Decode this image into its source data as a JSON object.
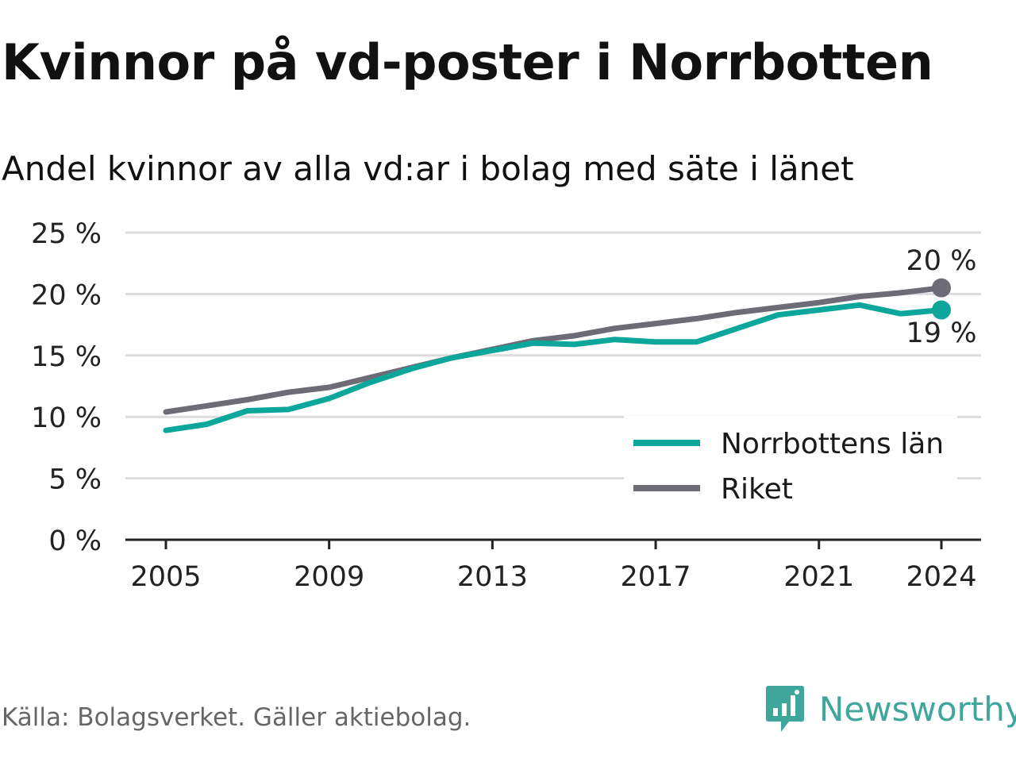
{
  "title": "Kvinnor på vd-poster i Norrbotten",
  "subtitle": "Andel kvinnor av alla vd:ar i bolag med säte i länet",
  "source": "Källa: Bolagsverket. Gäller aktiebolag.",
  "brand": {
    "name": "Newsworthy",
    "icon": "newsworthy-logo-icon",
    "color": "#3ea69a"
  },
  "chart_data": {
    "type": "line",
    "title": "Kvinnor på vd-poster i Norrbotten",
    "subtitle": "Andel kvinnor av alla vd:ar i bolag med säte i länet",
    "x": [
      2005,
      2006,
      2007,
      2008,
      2009,
      2010,
      2011,
      2012,
      2013,
      2014,
      2015,
      2016,
      2017,
      2018,
      2019,
      2020,
      2021,
      2022,
      2023,
      2024
    ],
    "x_ticks": [
      "2005",
      "2009",
      "2013",
      "2017",
      "2021",
      "2024"
    ],
    "y_ticks": [
      "0 %",
      "5 %",
      "10 %",
      "15 %",
      "20 %",
      "25 %"
    ],
    "ylim": [
      0,
      25
    ],
    "grid": "horizontal",
    "legend_position": "right",
    "series": [
      {
        "name": "Norrbottens län",
        "color": "#0da69a",
        "values": [
          8.9,
          9.4,
          10.5,
          10.6,
          11.5,
          12.8,
          13.9,
          14.8,
          15.4,
          16.0,
          15.9,
          16.3,
          16.1,
          16.1,
          17.2,
          18.3,
          18.7,
          19.1,
          18.4,
          18.7
        ],
        "end_label": "19 %"
      },
      {
        "name": "Riket",
        "color": "#6d6b75",
        "values": [
          10.4,
          10.9,
          11.4,
          12.0,
          12.4,
          13.2,
          14.0,
          14.8,
          15.5,
          16.2,
          16.6,
          17.2,
          17.6,
          18.0,
          18.5,
          18.9,
          19.3,
          19.8,
          20.1,
          20.5
        ],
        "end_label": "20 %"
      }
    ]
  }
}
